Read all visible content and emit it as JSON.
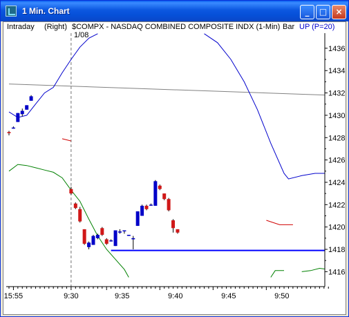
{
  "window": {
    "title": "1 Min. Chart",
    "buttons": {
      "minimize": "_",
      "maximize": "□",
      "close": "×"
    }
  },
  "header": {
    "interval": "Intraday",
    "axis_side": "(Right)",
    "symbol": "$COMPX - NASDAQ COMBINED COMPOSITE INDX (1-Min)",
    "date": "1/08",
    "chart_style": "Bar",
    "indicator": "UP (P=20)"
  },
  "colors": {
    "up_candle": "#0000C8",
    "down_candle": "#D01818",
    "upper_band": "#0000CC",
    "lower_band": "#008000",
    "middle_band": "#D00000",
    "trend_line": "#808080",
    "support_line": "#0000FF",
    "title_bar": "#0A56E0"
  },
  "chart_data": {
    "type": "candlestick",
    "title": "$COMPX - NASDAQ COMBINED COMPOSITE INDX (1-Min)",
    "x_tick_labels": [
      "15:55",
      "9:30",
      "9:35",
      "9:40",
      "9:45",
      "9:50"
    ],
    "y_tick_labels": [
      "1416",
      "1418",
      "1420",
      "1422",
      "1424",
      "1426",
      "1428",
      "1430",
      "1432",
      "1434",
      "1436"
    ],
    "ylim": [
      1415,
      1437
    ],
    "grid": false,
    "candles": [
      {
        "t": "15:54",
        "o": 1428.5,
        "h": 1428.6,
        "l": 1428.2,
        "c": 1428.4
      },
      {
        "t": "15:55",
        "o": 1428.9,
        "h": 1429.0,
        "l": 1428.8,
        "c": 1428.9
      },
      {
        "t": "15:56",
        "o": 1429.4,
        "h": 1430.2,
        "l": 1429.4,
        "c": 1430.2
      },
      {
        "t": "15:57",
        "o": 1430.1,
        "h": 1430.6,
        "l": 1429.9,
        "c": 1430.4
      },
      {
        "t": "15:58",
        "o": 1430.5,
        "h": 1430.9,
        "l": 1430.5,
        "c": 1430.9
      },
      {
        "t": "15:59",
        "o": 1431.3,
        "h": 1431.8,
        "l": 1431.3,
        "c": 1431.7
      },
      {
        "t": "9:30",
        "o": 1423.4,
        "h": 1423.6,
        "l": 1422.9,
        "c": 1423.0
      },
      {
        "t": "9:31",
        "o": 1422.1,
        "h": 1422.2,
        "l": 1421.6,
        "c": 1421.7
      },
      {
        "t": "9:32",
        "o": 1421.6,
        "h": 1421.8,
        "l": 1420.4,
        "c": 1420.5
      },
      {
        "t": "9:33",
        "o": 1419.8,
        "h": 1419.8,
        "l": 1418.4,
        "c": 1418.5
      },
      {
        "t": "9:34",
        "o": 1418.2,
        "h": 1418.7,
        "l": 1418.0,
        "c": 1418.6
      },
      {
        "t": "9:35",
        "o": 1418.4,
        "h": 1419.3,
        "l": 1418.4,
        "c": 1419.2
      },
      {
        "t": "9:36",
        "o": 1419.0,
        "h": 1419.4,
        "l": 1418.9,
        "c": 1419.3
      },
      {
        "t": "9:37",
        "o": 1419.9,
        "h": 1420.0,
        "l": 1419.2,
        "c": 1419.3
      },
      {
        "t": "9:38",
        "o": 1418.9,
        "h": 1419.0,
        "l": 1418.4,
        "c": 1418.5
      },
      {
        "t": "9:39",
        "o": 1418.8,
        "h": 1418.9,
        "l": 1418.7,
        "c": 1418.8
      },
      {
        "t": "9:40",
        "o": 1418.3,
        "h": 1419.7,
        "l": 1418.3,
        "c": 1419.7
      },
      {
        "t": "9:41",
        "o": 1419.5,
        "h": 1419.8,
        "l": 1419.4,
        "c": 1419.6
      },
      {
        "t": "9:42",
        "o": 1419.7,
        "h": 1419.7,
        "l": 1419.4,
        "c": 1419.7
      },
      {
        "t": "9:43",
        "o": 1419.3,
        "h": 1419.3,
        "l": 1419.2,
        "c": 1419.3
      },
      {
        "t": "9:44",
        "o": 1418.9,
        "h": 1419.2,
        "l": 1418.0,
        "c": 1419.0
      },
      {
        "t": "9:45",
        "o": 1420.1,
        "h": 1421.4,
        "l": 1420.1,
        "c": 1421.4
      },
      {
        "t": "9:46",
        "o": 1421.0,
        "h": 1422.0,
        "l": 1421.0,
        "c": 1421.9
      },
      {
        "t": "9:47",
        "o": 1421.9,
        "h": 1422.0,
        "l": 1421.5,
        "c": 1421.6
      },
      {
        "t": "9:48",
        "o": 1422.0,
        "h": 1422.1,
        "l": 1421.9,
        "c": 1422.0
      },
      {
        "t": "9:49",
        "o": 1421.9,
        "h": 1424.2,
        "l": 1421.9,
        "c": 1424.1
      },
      {
        "t": "9:50",
        "o": 1423.7,
        "h": 1423.8,
        "l": 1423.3,
        "c": 1423.4
      },
      {
        "t": "9:51",
        "o": 1423.0,
        "h": 1423.0,
        "l": 1422.4,
        "c": 1422.5
      },
      {
        "t": "9:52",
        "o": 1422.5,
        "h": 1422.6,
        "l": 1421.4,
        "c": 1421.5
      },
      {
        "t": "9:53",
        "o": 1420.6,
        "h": 1420.7,
        "l": 1419.5,
        "c": 1419.9
      },
      {
        "t": "9:54",
        "o": 1419.8,
        "h": 1419.8,
        "l": 1419.4,
        "c": 1419.5
      }
    ],
    "upper_band": [
      [
        0,
        1430.3
      ],
      [
        2,
        1429.8
      ],
      [
        4,
        1430.0
      ],
      [
        6,
        1431.0
      ],
      [
        8,
        1432.0
      ],
      [
        10,
        1432.5
      ],
      [
        12,
        1433.8
      ],
      [
        14,
        1435.0
      ],
      [
        16,
        1436.1
      ],
      [
        18,
        1436.9
      ],
      [
        20,
        1437.3
      ],
      [
        44,
        1437.3
      ],
      [
        47,
        1436.5
      ],
      [
        50,
        1435.0
      ],
      [
        53,
        1433.0
      ],
      [
        56,
        1430.5
      ],
      [
        59,
        1427.5
      ],
      [
        62,
        1424.8
      ],
      [
        63,
        1424.3
      ],
      [
        66,
        1424.6
      ],
      [
        69,
        1424.8
      ],
      [
        72,
        1424.8
      ]
    ],
    "middle_band": [
      [
        0,
        1427.8
      ],
      [
        4,
        1427.6
      ],
      [
        8,
        1427.6
      ],
      [
        12,
        1427.9
      ],
      [
        14,
        1427.7
      ],
      [
        18,
        1427.0
      ],
      [
        22,
        1426.2
      ],
      [
        26,
        1425.4
      ],
      [
        30,
        1424.9
      ],
      [
        34,
        1424.3
      ],
      [
        38,
        1423.8
      ],
      [
        42,
        1423.3
      ],
      [
        46,
        1422.7
      ],
      [
        50,
        1422.0
      ],
      [
        54,
        1421.3
      ],
      [
        58,
        1420.6
      ],
      [
        61,
        1420.2
      ],
      [
        64,
        1420.2
      ],
      [
        68,
        1420.4
      ],
      [
        72,
        1420.3
      ]
    ],
    "lower_band": [
      [
        0,
        1425.0
      ],
      [
        2,
        1425.6
      ],
      [
        4,
        1425.5
      ],
      [
        6,
        1425.3
      ],
      [
        8,
        1425.1
      ],
      [
        10,
        1424.9
      ],
      [
        12,
        1424.4
      ],
      [
        14,
        1423.3
      ],
      [
        16,
        1422.3
      ],
      [
        18,
        1420.7
      ],
      [
        20,
        1419.2
      ],
      [
        22,
        1418.0
      ],
      [
        24,
        1417.1
      ],
      [
        26,
        1416.2
      ],
      [
        27,
        1415.5
      ],
      [
        59,
        1415.5
      ],
      [
        60,
        1416.1
      ],
      [
        62,
        1416.1
      ],
      [
        66,
        1416.0
      ],
      [
        68,
        1416.1
      ],
      [
        70,
        1416.3
      ],
      [
        72,
        1416.2
      ]
    ],
    "trend_line": [
      [
        0,
        1432.8
      ],
      [
        72,
        1431.8
      ]
    ],
    "support_line": {
      "from": 23,
      "to": 72,
      "y": 1417.9
    },
    "session_break": 14
  }
}
